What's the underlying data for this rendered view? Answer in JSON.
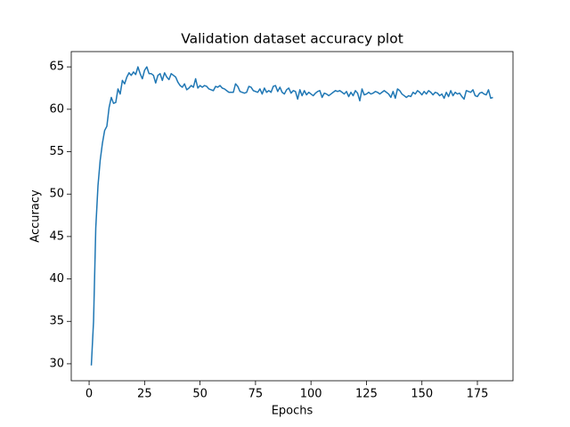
{
  "chart_data": {
    "type": "line",
    "title": "Validation dataset accuracy plot",
    "x_label": "Epochs",
    "y_label": "Accuracy",
    "x": [
      1,
      2,
      3,
      4,
      5,
      6,
      7,
      8,
      9,
      10,
      11,
      12,
      13,
      14,
      15,
      16,
      17,
      18,
      19,
      20,
      21,
      22,
      23,
      24,
      25,
      26,
      27,
      28,
      29,
      30,
      31,
      32,
      33,
      34,
      35,
      36,
      37,
      38,
      39,
      40,
      41,
      42,
      43,
      44,
      45,
      46,
      47,
      48,
      49,
      50,
      51,
      52,
      53,
      54,
      55,
      56,
      57,
      58,
      59,
      60,
      61,
      62,
      63,
      64,
      65,
      66,
      67,
      68,
      69,
      70,
      71,
      72,
      73,
      74,
      75,
      76,
      77,
      78,
      79,
      80,
      81,
      82,
      83,
      84,
      85,
      86,
      87,
      88,
      89,
      90,
      91,
      92,
      93,
      94,
      95,
      96,
      97,
      98,
      99,
      100,
      101,
      102,
      103,
      104,
      105,
      106,
      107,
      108,
      109,
      110,
      111,
      112,
      113,
      114,
      115,
      116,
      117,
      118,
      119,
      120,
      121,
      122,
      123,
      124,
      125,
      126,
      127,
      128,
      129,
      130,
      131,
      132,
      133,
      134,
      135,
      136,
      137,
      138,
      139,
      140,
      141,
      142,
      143,
      144,
      145,
      146,
      147,
      148,
      149,
      150,
      151,
      152,
      153,
      154,
      155,
      156,
      157,
      158,
      159,
      160,
      161,
      162,
      163,
      164,
      165,
      166,
      167,
      168,
      169,
      170,
      171,
      172,
      173,
      174,
      175,
      176,
      177,
      178,
      179,
      180,
      181,
      182
    ],
    "series": [
      {
        "name": "accuracy",
        "color": "#1f77b4",
        "values": [
          29.8,
          35.0,
          46.0,
          51.0,
          54.0,
          56.0,
          57.5,
          58.0,
          60.2,
          61.4,
          60.7,
          60.8,
          62.4,
          61.8,
          63.4,
          63.0,
          63.8,
          64.3,
          64.0,
          64.4,
          64.1,
          65.0,
          64.2,
          63.6,
          64.6,
          65.0,
          64.2,
          64.2,
          64.0,
          63.1,
          64.0,
          64.2,
          63.4,
          64.3,
          63.8,
          63.5,
          64.2,
          64.0,
          63.8,
          63.2,
          62.8,
          62.6,
          63.0,
          62.3,
          62.5,
          62.8,
          62.6,
          63.6,
          62.5,
          62.8,
          62.6,
          62.8,
          62.7,
          62.4,
          62.3,
          62.2,
          62.7,
          62.6,
          62.8,
          62.5,
          62.4,
          62.2,
          62.0,
          62.0,
          62.0,
          63.0,
          62.7,
          62.1,
          62.0,
          61.9,
          62.0,
          62.7,
          62.6,
          62.2,
          62.1,
          62.0,
          62.4,
          61.8,
          62.5,
          62.0,
          62.2,
          62.0,
          62.7,
          62.8,
          62.1,
          62.6,
          62.0,
          61.8,
          62.3,
          62.5,
          61.9,
          62.2,
          62.1,
          61.2,
          62.3,
          61.6,
          62.2,
          61.7,
          62.0,
          61.8,
          61.6,
          61.9,
          62.1,
          62.2,
          61.4,
          61.9,
          61.8,
          61.6,
          61.8,
          62.0,
          62.2,
          62.1,
          62.2,
          62.0,
          61.8,
          62.1,
          61.5,
          62.0,
          61.6,
          62.2,
          61.9,
          61.0,
          62.4,
          61.7,
          61.8,
          62.0,
          61.8,
          61.9,
          62.1,
          62.0,
          61.8,
          62.0,
          62.2,
          62.0,
          61.8,
          61.4,
          62.1,
          61.3,
          62.4,
          62.2,
          61.8,
          61.6,
          61.4,
          61.6,
          61.5,
          62.0,
          61.8,
          62.2,
          62.0,
          61.7,
          62.1,
          61.8,
          62.2,
          62.0,
          61.7,
          62.0,
          61.9,
          61.6,
          61.8,
          61.3,
          62.0,
          61.5,
          62.2,
          61.6,
          62.0,
          61.8,
          61.9,
          61.5,
          61.2,
          62.2,
          62.1,
          62.0,
          62.3,
          61.6,
          61.5,
          61.9,
          62.0,
          61.8,
          61.7,
          62.3,
          61.3,
          61.4
        ]
      }
    ],
    "xlim": [
      -8.05,
      191.05
    ],
    "ylim": [
      28.0,
      66.8
    ],
    "xticks": [
      0,
      25,
      50,
      75,
      100,
      125,
      150,
      175
    ],
    "yticks": [
      30,
      35,
      40,
      45,
      50,
      55,
      60,
      65
    ]
  }
}
